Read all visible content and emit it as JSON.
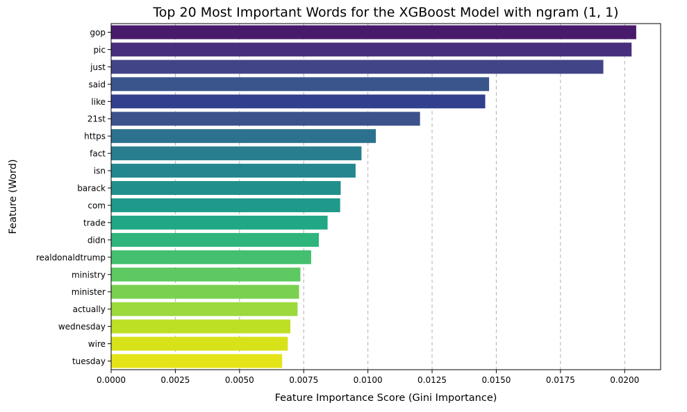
{
  "chart_data": {
    "type": "bar",
    "orientation": "horizontal",
    "title": "Top 20 Most Important Words for the XGBoost Model with ngram (1, 1)",
    "xlabel": "Feature Importance Score (Gini Importance)",
    "ylabel": "Feature (Word)",
    "xlim": [
      0,
      0.0214
    ],
    "xticks": [
      "0.0000",
      "0.0025",
      "0.0050",
      "0.0075",
      "0.0100",
      "0.0125",
      "0.0150",
      "0.0175",
      "0.0200"
    ],
    "xtick_values": [
      0,
      0.0025,
      0.005,
      0.0075,
      0.01,
      0.0125,
      0.015,
      0.0175,
      0.02
    ],
    "grid": "x-dashed",
    "palette": "viridis",
    "categories": [
      "gop",
      "pic",
      "just",
      "said",
      "like",
      "21st",
      "https",
      "fact",
      "isn",
      "barack",
      "com",
      "trade",
      "didn",
      "realdonaldtrump",
      "ministry",
      "minister",
      "actually",
      "wednesday",
      "wire",
      "tuesday"
    ],
    "values": [
      0.02045,
      0.02027,
      0.01917,
      0.01472,
      0.01457,
      0.01203,
      0.01031,
      0.00975,
      0.00952,
      0.00894,
      0.00892,
      0.00843,
      0.00809,
      0.00779,
      0.00737,
      0.00732,
      0.00726,
      0.00698,
      0.00688,
      0.00666
    ],
    "colors": [
      "#481a6c",
      "#472f7d",
      "#414487",
      "#39558c",
      "#323f8d",
      "#3b528b",
      "#2c728e",
      "#287d8e",
      "#24868e",
      "#21908d",
      "#1f9a8a",
      "#22a785",
      "#2fb47c",
      "#44bf70",
      "#5ec962",
      "#7ad151",
      "#9bd93c",
      "#bddf26",
      "#d8e219",
      "#e5e419"
    ]
  }
}
